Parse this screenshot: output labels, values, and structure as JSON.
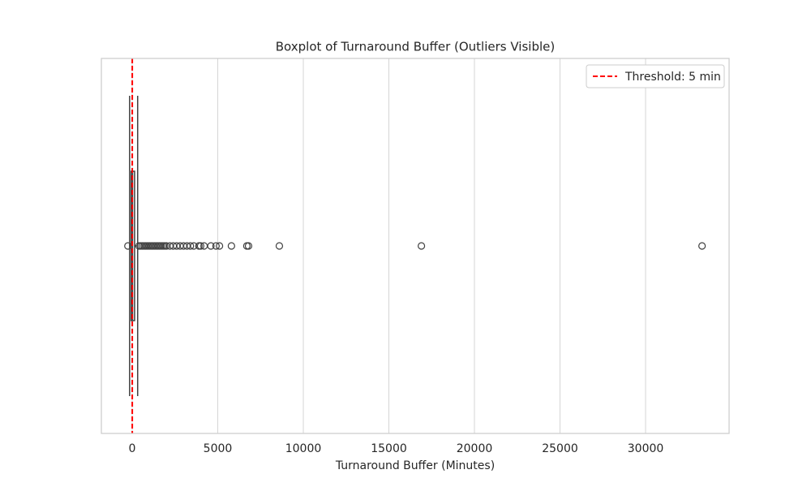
{
  "chart_data": {
    "type": "box",
    "title": "Boxplot of Turnaround Buffer (Outliers Visible)",
    "x_label": "Turnaround Buffer (Minutes)",
    "xlim": [
      -1800,
      34880
    ],
    "xticks": [
      0,
      5000,
      10000,
      15000,
      20000,
      25000,
      30000
    ],
    "grid": true,
    "color": "#3f3f3f",
    "whisker_low": -150,
    "q1": -60,
    "median": 20,
    "q3": 140,
    "whisker_high": 320,
    "outliers": [
      -250,
      400,
      500,
      600,
      700,
      800,
      900,
      1000,
      1100,
      1200,
      1300,
      1400,
      1500,
      1600,
      1700,
      1800,
      1900,
      2000,
      2200,
      2400,
      2600,
      2800,
      3000,
      3200,
      3400,
      3600,
      3900,
      4000,
      4200,
      4600,
      4900,
      5100,
      5800,
      6700,
      6800,
      8600,
      16900,
      33300
    ],
    "threshold": {
      "value": 5,
      "label": "Threshold: 5 min",
      "color": "#ff0000"
    },
    "legend_position": "upper right"
  }
}
